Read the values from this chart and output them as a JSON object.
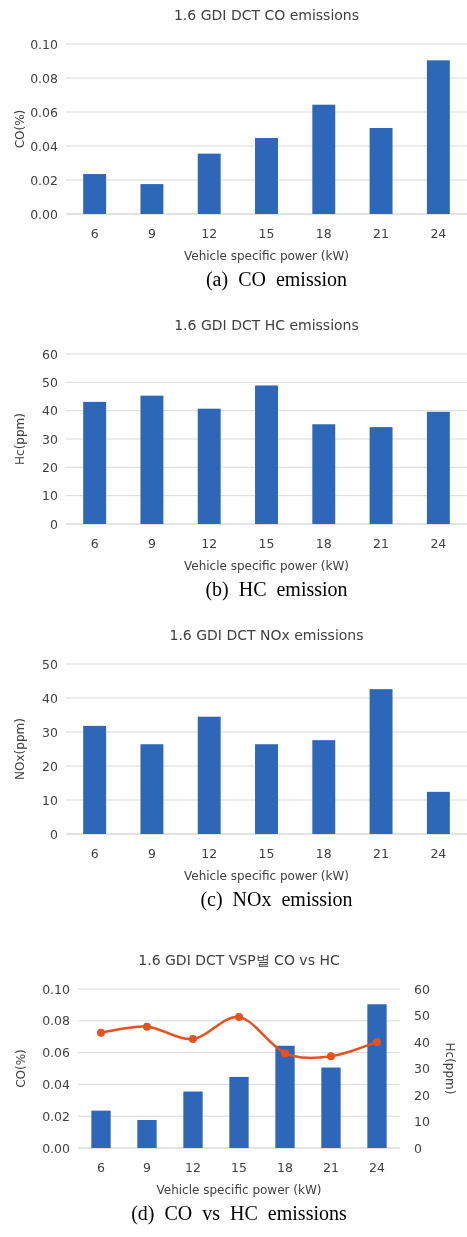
{
  "chart_data": [
    {
      "type": "bar",
      "title": "1.6 GDI DCT CO emissions",
      "xlabel": "Vehicle specific power (kW)",
      "ylabel": "CO(%)",
      "categories": [
        "6",
        "9",
        "12",
        "15",
        "18",
        "21",
        "24"
      ],
      "values": [
        0.0235,
        0.0176,
        0.0355,
        0.0447,
        0.0643,
        0.0506,
        0.0904
      ],
      "color": "#2e67b8",
      "ylim": [
        0,
        0.1
      ],
      "yticks": [
        {
          "value": 0,
          "label": "0.00"
        },
        {
          "value": 0.02,
          "label": "0.02"
        },
        {
          "value": 0.04,
          "label": "0.04"
        },
        {
          "value": 0.06,
          "label": "0.06"
        },
        {
          "value": 0.08,
          "label": "0.08"
        },
        {
          "value": 0.1,
          "label": "0.10"
        }
      ],
      "grid": "y",
      "annotations": [
        "(a)  CO  emission"
      ]
    },
    {
      "type": "bar",
      "title": "1.6 GDI DCT HC emissions",
      "xlabel": "Vehicle specific power (kW)",
      "ylabel": "Hc(ppm)",
      "categories": [
        "6",
        "9",
        "12",
        "15",
        "18",
        "21",
        "24"
      ],
      "values": [
        43.1,
        45.3,
        40.7,
        48.9,
        35.2,
        34.2,
        39.6
      ],
      "color": "#2e67b8",
      "ylim": [
        0,
        60
      ],
      "yticks": [
        0,
        10,
        20,
        30,
        40,
        50,
        60
      ],
      "grid": "y",
      "annotations": [
        "(b)  HC  emission"
      ]
    },
    {
      "type": "bar",
      "title": "1.6 GDI DCT NOx emissions",
      "xlabel": "Vehicle specific power (kW)",
      "ylabel": "NOx(ppm)",
      "categories": [
        "6",
        "9",
        "12",
        "15",
        "18",
        "21",
        "24"
      ],
      "values": [
        31.8,
        26.4,
        34.5,
        26.4,
        27.6,
        42.6,
        12.4
      ],
      "color": "#2e67b8",
      "ylim": [
        0,
        50
      ],
      "yticks": [
        0,
        10,
        20,
        30,
        40,
        50
      ],
      "grid": "y",
      "annotations": [
        "(c)  NOx  emission"
      ]
    },
    {
      "type": "bar",
      "title": "1.6 GDI DCT VSP별 CO vs HC",
      "xlabel": "Vehicle specific power (kW)",
      "ylabel": "CO(%)",
      "y2label": "Hc(ppm)",
      "categories": [
        "6",
        "9",
        "12",
        "15",
        "18",
        "21",
        "24"
      ],
      "series": [
        {
          "type": "bar",
          "color": "#2e67b8",
          "values": [
            0.0235,
            0.0176,
            0.0355,
            0.0447,
            0.0643,
            0.0506,
            0.0904
          ]
        },
        {
          "type": "line",
          "axis": "y2",
          "color": "#e4531f",
          "marker": "circle",
          "values": [
            43.5,
            45.8,
            41.1,
            49.4,
            35.8,
            34.6,
            40.0
          ]
        }
      ],
      "ylim": [
        0,
        0.1
      ],
      "yticks": [
        {
          "value": 0,
          "label": "0.00"
        },
        {
          "value": 0.02,
          "label": "0.02"
        },
        {
          "value": 0.04,
          "label": "0.04"
        },
        {
          "value": 0.06,
          "label": "0.06"
        },
        {
          "value": 0.08,
          "label": "0.08"
        },
        {
          "value": 0.1,
          "label": "0.10"
        }
      ],
      "y2lim": [
        0,
        60
      ],
      "y2ticks": [
        0,
        10,
        20,
        30,
        40,
        50,
        60
      ],
      "grid": "y",
      "annotations": [
        "(d)  CO  vs  HC  emissions"
      ]
    }
  ]
}
